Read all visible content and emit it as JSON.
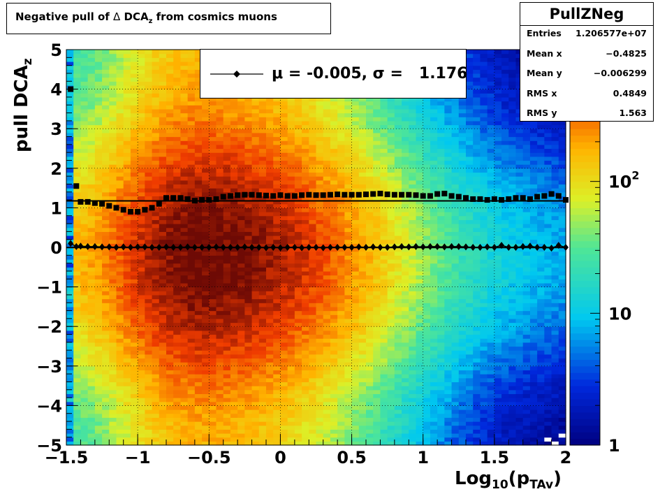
{
  "title": {
    "prefix": "Negative pull of ",
    "delta": "Δ",
    "dca": " DCA",
    "sub": "z",
    "suffix": " from cosmics muons"
  },
  "stats": {
    "name": "PullZNeg",
    "rows": [
      {
        "label": "Entries",
        "value": "1.206577e+07"
      },
      {
        "label": "Mean x",
        "value": "−0.4825"
      },
      {
        "label": "Mean y",
        "value": "−0.006299"
      },
      {
        "label": "RMS x",
        "value": "0.4849"
      },
      {
        "label": "RMS y",
        "value": "1.563"
      }
    ]
  },
  "legend": {
    "text": "μ = -0.005, σ =   1.176"
  },
  "axes": {
    "x_main": "Log",
    "x_sub1": "10",
    "x_mid": "(p",
    "x_sub2": "TAv",
    "x_end": ")",
    "y_main": "pull DCA",
    "y_sub": "z"
  },
  "colors": {
    "frame": "#000000",
    "grid": "#000000",
    "markers": "#000000",
    "fit_line": "#000000"
  },
  "chart_data": {
    "type": "heatmap",
    "xlim": [
      -1.5,
      2.0
    ],
    "ylim": [
      -5,
      5
    ],
    "grid": true,
    "logz": true,
    "zlim": [
      1,
      1000
    ],
    "x_ticks": [
      {
        "v": -1.5,
        "label": "−1.5"
      },
      {
        "v": -1,
        "label": "−1"
      },
      {
        "v": -0.5,
        "label": "−0.5"
      },
      {
        "v": 0,
        "label": "0"
      },
      {
        "v": 0.5,
        "label": "0.5"
      },
      {
        "v": 1,
        "label": "1"
      },
      {
        "v": 1.5,
        "label": "1.5"
      },
      {
        "v": 2,
        "label": "2"
      }
    ],
    "y_ticks": [
      {
        "v": -5,
        "label": "−5"
      },
      {
        "v": -4,
        "label": "−4"
      },
      {
        "v": -3,
        "label": "−3"
      },
      {
        "v": -2,
        "label": "−2"
      },
      {
        "v": -1,
        "label": "−1"
      },
      {
        "v": 0,
        "label": "0"
      },
      {
        "v": 1,
        "label": "1"
      },
      {
        "v": 2,
        "label": "2"
      },
      {
        "v": 3,
        "label": "3"
      },
      {
        "v": 4,
        "label": "4"
      },
      {
        "v": 5,
        "label": "5"
      }
    ],
    "z_ticks": [
      {
        "v": 1,
        "base": "1",
        "exp": ""
      },
      {
        "v": 10,
        "base": "10",
        "exp": ""
      },
      {
        "v": 100,
        "base": "10",
        "exp": "2"
      }
    ],
    "density": {
      "peak_x": -0.55,
      "peak_y": -0.2,
      "sigma_x_left": 0.35,
      "sigma_x_right": 0.6,
      "sigma_y": 1.7,
      "peak_count": 1000,
      "x_edge": -1.45
    },
    "series": [
      {
        "name": "sigma",
        "marker": "square",
        "x": [
          -1.47,
          -1.43,
          -1.4,
          -1.35,
          -1.3,
          -1.25,
          -1.2,
          -1.15,
          -1.1,
          -1.05,
          -1.0,
          -0.95,
          -0.9,
          -0.85,
          -0.8,
          -0.75,
          -0.7,
          -0.65,
          -0.6,
          -0.55,
          -0.5,
          -0.45,
          -0.4,
          -0.35,
          -0.3,
          -0.25,
          -0.2,
          -0.15,
          -0.1,
          -0.05,
          0.0,
          0.05,
          0.1,
          0.15,
          0.2,
          0.25,
          0.3,
          0.35,
          0.4,
          0.45,
          0.5,
          0.55,
          0.6,
          0.65,
          0.7,
          0.75,
          0.8,
          0.85,
          0.9,
          0.95,
          1.0,
          1.05,
          1.1,
          1.15,
          1.2,
          1.25,
          1.3,
          1.35,
          1.4,
          1.45,
          1.5,
          1.55,
          1.6,
          1.65,
          1.7,
          1.75,
          1.8,
          1.85,
          1.9,
          1.95,
          2.0
        ],
        "y": [
          4.0,
          1.55,
          1.15,
          1.15,
          1.12,
          1.1,
          1.05,
          1.0,
          0.95,
          0.9,
          0.9,
          0.95,
          1.0,
          1.1,
          1.25,
          1.25,
          1.25,
          1.22,
          1.18,
          1.2,
          1.2,
          1.22,
          1.28,
          1.3,
          1.32,
          1.33,
          1.33,
          1.32,
          1.31,
          1.3,
          1.32,
          1.3,
          1.3,
          1.32,
          1.33,
          1.32,
          1.32,
          1.33,
          1.34,
          1.33,
          1.33,
          1.33,
          1.34,
          1.35,
          1.36,
          1.34,
          1.33,
          1.33,
          1.33,
          1.32,
          1.3,
          1.3,
          1.35,
          1.36,
          1.3,
          1.28,
          1.25,
          1.22,
          1.22,
          1.2,
          1.22,
          1.2,
          1.22,
          1.25,
          1.25,
          1.22,
          1.28,
          1.3,
          1.35,
          1.3,
          1.2
        ]
      },
      {
        "name": "mu",
        "marker": "diamond",
        "x": [
          -1.47,
          -1.43,
          -1.4,
          -1.35,
          -1.3,
          -1.25,
          -1.2,
          -1.15,
          -1.1,
          -1.05,
          -1.0,
          -0.95,
          -0.9,
          -0.85,
          -0.8,
          -0.75,
          -0.7,
          -0.65,
          -0.6,
          -0.55,
          -0.5,
          -0.45,
          -0.4,
          -0.35,
          -0.3,
          -0.25,
          -0.2,
          -0.15,
          -0.1,
          -0.05,
          0.0,
          0.05,
          0.1,
          0.15,
          0.2,
          0.25,
          0.3,
          0.35,
          0.4,
          0.45,
          0.5,
          0.55,
          0.6,
          0.65,
          0.7,
          0.75,
          0.8,
          0.85,
          0.9,
          0.95,
          1.0,
          1.05,
          1.1,
          1.15,
          1.2,
          1.25,
          1.3,
          1.35,
          1.4,
          1.45,
          1.5,
          1.55,
          1.6,
          1.65,
          1.7,
          1.75,
          1.8,
          1.85,
          1.9,
          1.95,
          2.0
        ],
        "y": [
          0.1,
          0.02,
          0.03,
          0.02,
          0.02,
          0.01,
          0.01,
          0.0,
          0.01,
          0.0,
          0.01,
          0.01,
          0.0,
          0.0,
          0.01,
          0.0,
          0.0,
          0.01,
          0.0,
          0.0,
          0.0,
          0.01,
          0.0,
          0.0,
          0.0,
          0.01,
          0.0,
          0.0,
          -0.01,
          0.0,
          -0.01,
          0.0,
          0.0,
          -0.01,
          0.0,
          0.0,
          -0.01,
          0.0,
          0.0,
          0.0,
          0.0,
          0.01,
          0.0,
          0.01,
          0.0,
          0.0,
          0.01,
          0.02,
          0.01,
          0.02,
          0.01,
          0.02,
          0.02,
          0.01,
          0.02,
          0.02,
          0.01,
          0.0,
          0.0,
          0.01,
          0.0,
          0.05,
          0.0,
          0.0,
          0.02,
          0.03,
          0.0,
          0.0,
          -0.02,
          0.05,
          0.0
        ]
      }
    ],
    "fits": [
      {
        "name": "sigma_fit",
        "x": [
          -1.5,
          2.0
        ],
        "y": [
          1.176,
          1.176
        ]
      },
      {
        "name": "mu_fit",
        "x": [
          -1.5,
          2.0
        ],
        "y": [
          -0.005,
          -0.005
        ]
      }
    ]
  }
}
